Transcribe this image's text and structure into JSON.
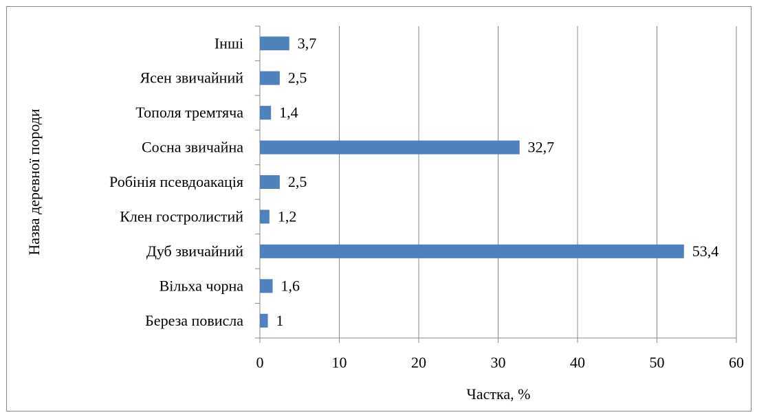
{
  "chart_data": {
    "type": "bar",
    "orientation": "horizontal",
    "categories": [
      "Береза повисла",
      "Вільха чорна",
      "Дуб звичайний",
      "Клен гостролистий",
      "Робінія псевдоакація",
      "Сосна звичайна",
      "Тополя тремтяча",
      "Ясен звичайний",
      "Інші"
    ],
    "values": [
      1,
      1.6,
      53.4,
      1.2,
      2.5,
      32.7,
      1.4,
      2.5,
      3.7
    ],
    "value_labels": [
      "1",
      "1,6",
      "53,4",
      "1,2",
      "2,5",
      "32,7",
      "1,4",
      "2,5",
      "3,7"
    ],
    "color": "#4f81bd",
    "xlim": [
      0,
      60
    ],
    "xticks": [
      0,
      10,
      20,
      30,
      40,
      50,
      60
    ],
    "grid": true,
    "xlabel": "Частка, %",
    "ylabel": "Назва деревної породи"
  }
}
